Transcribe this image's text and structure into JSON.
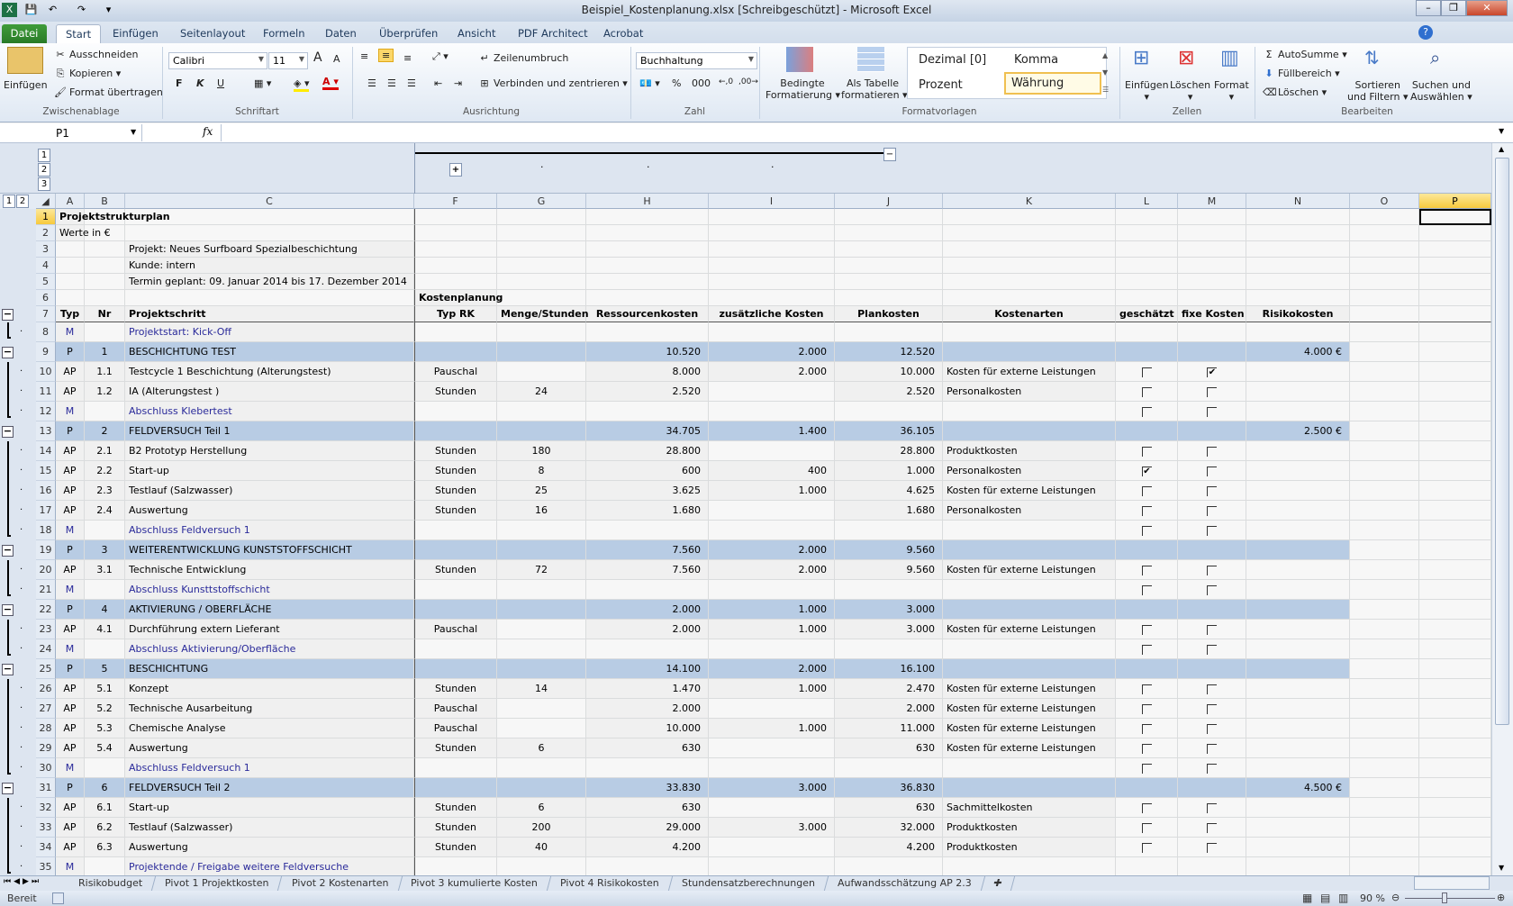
{
  "window": {
    "title": "Beispiel_Kostenplanung.xlsx  [Schreibgeschützt]  -  Microsoft Excel",
    "minimize": "–",
    "restore": "❐",
    "close": "✕"
  },
  "qat": {
    "save": "💾",
    "undo": "↶",
    "redo": "↷",
    "customize": "▾"
  },
  "tabs": [
    "Datei",
    "Start",
    "Einfügen",
    "Seitenlayout",
    "Formeln",
    "Daten",
    "Überprüfen",
    "Ansicht",
    "PDF Architect",
    "Acrobat"
  ],
  "ribbon": {
    "clipboard": {
      "label": "Zwischenablage",
      "paste": "Einfügen",
      "cut": "Ausschneiden",
      "copy": "Kopieren",
      "format_painter": "Format übertragen"
    },
    "font": {
      "label": "Schriftart",
      "font_name": "Calibri",
      "font_size": "11",
      "bold": "F",
      "italic": "K",
      "underline": "U",
      "grow": "A",
      "shrink": "A"
    },
    "alignment": {
      "label": "Ausrichtung",
      "wrap": "Zeilenumbruch",
      "merge": "Verbinden und zentrieren"
    },
    "number": {
      "label": "Zahl",
      "format": "Buchhaltung",
      "percent": "%",
      "thousands": "000"
    },
    "styles": {
      "label": "Formatvorlagen",
      "conditional": [
        "Bedingte",
        "Formatierung"
      ],
      "as_table": [
        "Als Tabelle",
        "formatieren"
      ],
      "gallery": [
        "Dezimal [0]",
        "Komma",
        "Prozent",
        "Währung"
      ]
    },
    "cells": {
      "label": "Zellen",
      "insert": "Einfügen",
      "delete": "Löschen",
      "format": "Format"
    },
    "editing": {
      "label": "Bearbeiten",
      "autosum": "AutoSumme",
      "fill": "Füllbereich",
      "clear": "Löschen",
      "sort": [
        "Sortieren",
        "und Filtern"
      ],
      "find": [
        "Suchen und",
        "Auswählen"
      ]
    }
  },
  "formula_bar": {
    "name_box": "P1",
    "fx": "fx",
    "value": ""
  },
  "outline": {
    "col_levels": [
      "1",
      "2",
      "3"
    ],
    "row_levels": [
      "1",
      "2"
    ]
  },
  "columns": [
    "A",
    "B",
    "C",
    "F",
    "G",
    "H",
    "I",
    "J",
    "K",
    "L",
    "M",
    "N",
    "O",
    "P"
  ],
  "selected": {
    "column": "P",
    "row": 1
  },
  "colors": {
    "project_row": "#b8cce4",
    "milestone_text": "#2a2a9a",
    "selection": "#f7c93d"
  },
  "rows": [
    {
      "n": 1,
      "cells": {
        "A": "Projektstrukturplan"
      },
      "kind": "title"
    },
    {
      "n": 2,
      "cells": {
        "A": "Werte in €"
      },
      "kind": "info"
    },
    {
      "n": 3,
      "cells": {
        "C": "Projekt: Neues Surfboard Spezialbeschichtung"
      },
      "kind": "info"
    },
    {
      "n": 4,
      "cells": {
        "C": "Kunde: intern"
      },
      "kind": "info"
    },
    {
      "n": 5,
      "cells": {
        "C": "Termin geplant: 09. Januar 2014 bis 17. Dezember 2014"
      },
      "kind": "info"
    },
    {
      "n": 6,
      "cells": {
        "F": "Kostenplanung"
      },
      "kind": "group"
    },
    {
      "n": 7,
      "cells": {
        "A": "Typ",
        "B": "Nr",
        "C": "Projektschritt",
        "F": "Typ RK",
        "G": "Menge/Stunden",
        "H": "Ressourcenkosten",
        "I": "zusätzliche Kosten",
        "J": "Plankosten",
        "K": "Kostenarten",
        "L": "geschätzt",
        "M": "fixe Kosten",
        "N": "Risikokosten"
      },
      "kind": "header"
    },
    {
      "n": 8,
      "cells": {
        "A": "M",
        "C": "Projektstart: Kick-Off"
      },
      "kind": "M"
    },
    {
      "n": 9,
      "cells": {
        "A": "P",
        "B": "1",
        "C": "BESCHICHTUNG TEST",
        "H": "10.520",
        "I": "2.000",
        "J": "12.520",
        "N": "4.000 €"
      },
      "kind": "P"
    },
    {
      "n": 10,
      "cells": {
        "A": "AP",
        "B": "1.1",
        "C": "Testcycle 1 Beschichtung (Alterungstest)",
        "F": "Pauschal",
        "H": "8.000",
        "I": "2.000",
        "J": "10.000",
        "K": "Kosten für externe Leistungen"
      },
      "kind": "AP",
      "L": false,
      "M": true
    },
    {
      "n": 11,
      "cells": {
        "A": "AP",
        "B": "1.2",
        "C": "IA (Alterungstest )",
        "F": "Stunden",
        "G": "24",
        "H": "2.520",
        "J": "2.520",
        "K": "Personalkosten"
      },
      "kind": "AP",
      "L": false,
      "M": false
    },
    {
      "n": 12,
      "cells": {
        "A": "M",
        "C": "Abschluss Klebertest"
      },
      "kind": "M",
      "L": false,
      "M": false
    },
    {
      "n": 13,
      "cells": {
        "A": "P",
        "B": "2",
        "C": "FELDVERSUCH Teil 1",
        "H": "34.705",
        "I": "1.400",
        "J": "36.105",
        "N": "2.500 €"
      },
      "kind": "P"
    },
    {
      "n": 14,
      "cells": {
        "A": "AP",
        "B": "2.1",
        "C": "B2 Prototyp Herstellung",
        "F": "Stunden",
        "G": "180",
        "H": "28.800",
        "J": "28.800",
        "K": "Produktkosten"
      },
      "kind": "AP",
      "L": false,
      "M": false
    },
    {
      "n": 15,
      "cells": {
        "A": "AP",
        "B": "2.2",
        "C": "Start-up",
        "F": "Stunden",
        "G": "8",
        "H": "600",
        "I": "400",
        "J": "1.000",
        "K": "Personalkosten"
      },
      "kind": "AP",
      "L": true,
      "M": false
    },
    {
      "n": 16,
      "cells": {
        "A": "AP",
        "B": "2.3",
        "C": "Testlauf (Salzwasser)",
        "F": "Stunden",
        "G": "25",
        "H": "3.625",
        "I": "1.000",
        "J": "4.625",
        "K": "Kosten für externe Leistungen"
      },
      "kind": "AP",
      "L": false,
      "M": false
    },
    {
      "n": 17,
      "cells": {
        "A": "AP",
        "B": "2.4",
        "C": "Auswertung",
        "F": "Stunden",
        "G": "16",
        "H": "1.680",
        "J": "1.680",
        "K": "Personalkosten"
      },
      "kind": "AP",
      "L": false,
      "M": false
    },
    {
      "n": 18,
      "cells": {
        "A": "M",
        "C": "Abschluss Feldversuch 1"
      },
      "kind": "M",
      "L": false,
      "M": false
    },
    {
      "n": 19,
      "cells": {
        "A": "P",
        "B": "3",
        "C": "WEITERENTWICKLUNG KUNSTSTOFFSCHICHT",
        "H": "7.560",
        "I": "2.000",
        "J": "9.560"
      },
      "kind": "P"
    },
    {
      "n": 20,
      "cells": {
        "A": "AP",
        "B": "3.1",
        "C": "Technische Entwicklung",
        "F": "Stunden",
        "G": "72",
        "H": "7.560",
        "I": "2.000",
        "J": "9.560",
        "K": "Kosten für externe Leistungen"
      },
      "kind": "AP",
      "L": false,
      "M": false
    },
    {
      "n": 21,
      "cells": {
        "A": "M",
        "C": "Abschluss Kunsttstoffschicht"
      },
      "kind": "M",
      "L": false,
      "M": false
    },
    {
      "n": 22,
      "cells": {
        "A": "P",
        "B": "4",
        "C": "AKTIVIERUNG / OBERFLÄCHE",
        "H": "2.000",
        "I": "1.000",
        "J": "3.000"
      },
      "kind": "P"
    },
    {
      "n": 23,
      "cells": {
        "A": "AP",
        "B": "4.1",
        "C": "Durchführung extern Lieferant",
        "F": "Pauschal",
        "H": "2.000",
        "I": "1.000",
        "J": "3.000",
        "K": "Kosten für externe Leistungen"
      },
      "kind": "AP",
      "L": false,
      "M": false
    },
    {
      "n": 24,
      "cells": {
        "A": "M",
        "C": "Abschluss Aktivierung/Oberfläche"
      },
      "kind": "M",
      "L": false,
      "M": false
    },
    {
      "n": 25,
      "cells": {
        "A": "P",
        "B": "5",
        "C": "BESCHICHTUNG",
        "H": "14.100",
        "I": "2.000",
        "J": "16.100"
      },
      "kind": "P"
    },
    {
      "n": 26,
      "cells": {
        "A": "AP",
        "B": "5.1",
        "C": "Konzept",
        "F": "Stunden",
        "G": "14",
        "H": "1.470",
        "I": "1.000",
        "J": "2.470",
        "K": "Kosten für externe Leistungen"
      },
      "kind": "AP",
      "L": false,
      "M": false
    },
    {
      "n": 27,
      "cells": {
        "A": "AP",
        "B": "5.2",
        "C": "Technische Ausarbeitung",
        "F": "Pauschal",
        "H": "2.000",
        "J": "2.000",
        "K": "Kosten für externe Leistungen"
      },
      "kind": "AP",
      "L": false,
      "M": false
    },
    {
      "n": 28,
      "cells": {
        "A": "AP",
        "B": "5.3",
        "C": "Chemische Analyse",
        "F": "Pauschal",
        "H": "10.000",
        "I": "1.000",
        "J": "11.000",
        "K": "Kosten für externe Leistungen"
      },
      "kind": "AP",
      "L": false,
      "M": false
    },
    {
      "n": 29,
      "cells": {
        "A": "AP",
        "B": "5.4",
        "C": "Auswertung",
        "F": "Stunden",
        "G": "6",
        "H": "630",
        "J": "630",
        "K": "Kosten für externe Leistungen"
      },
      "kind": "AP",
      "L": false,
      "M": false
    },
    {
      "n": 30,
      "cells": {
        "A": "M",
        "C": "Abschluss Feldversuch 1"
      },
      "kind": "M",
      "L": false,
      "M": false
    },
    {
      "n": 31,
      "cells": {
        "A": "P",
        "B": "6",
        "C": "FELDVERSUCH Teil 2",
        "H": "33.830",
        "I": "3.000",
        "J": "36.830",
        "N": "4.500 €"
      },
      "kind": "P"
    },
    {
      "n": 32,
      "cells": {
        "A": "AP",
        "B": "6.1",
        "C": "Start-up",
        "F": "Stunden",
        "G": "6",
        "H": "630",
        "J": "630",
        "K": "Sachmittelkosten"
      },
      "kind": "AP",
      "L": false,
      "M": false
    },
    {
      "n": 33,
      "cells": {
        "A": "AP",
        "B": "6.2",
        "C": "Testlauf (Salzwasser)",
        "F": "Stunden",
        "G": "200",
        "H": "29.000",
        "I": "3.000",
        "J": "32.000",
        "K": "Produktkosten"
      },
      "kind": "AP",
      "L": false,
      "M": false
    },
    {
      "n": 34,
      "cells": {
        "A": "AP",
        "B": "6.3",
        "C": "Auswertung",
        "F": "Stunden",
        "G": "40",
        "H": "4.200",
        "J": "4.200",
        "K": "Produktkosten"
      },
      "kind": "AP",
      "L": false,
      "M": false
    },
    {
      "n": 35,
      "cells": {
        "A": "M",
        "C": "Projektende / Freigabe weitere Feldversuche"
      },
      "kind": "M"
    }
  ],
  "sheet_tabs": [
    "Risikobudget",
    "Pivot 1 Projektkosten",
    "Pivot 2 Kostenarten",
    "Pivot 3 kumulierte Kosten",
    "Pivot 4 Risikokosten",
    "Stundensatzberechnungen",
    "Aufwandsschätzung AP 2.3"
  ],
  "status": {
    "ready": "Bereit",
    "zoom": "90 %",
    "zoom_level": 90
  }
}
